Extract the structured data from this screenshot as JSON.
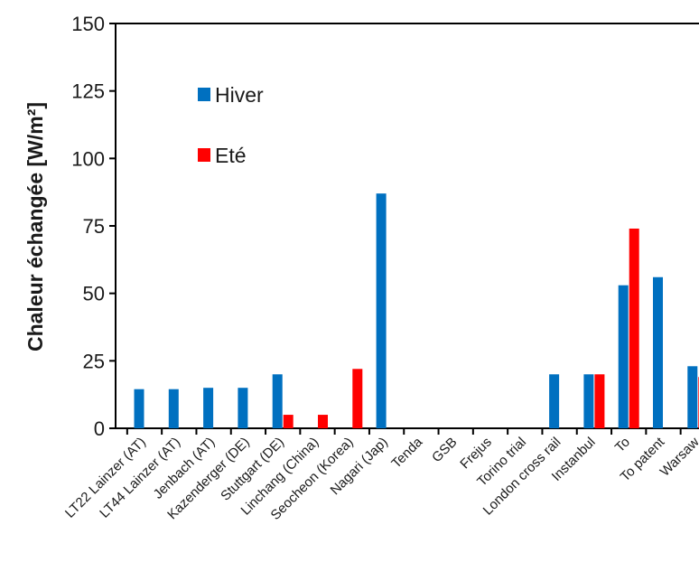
{
  "chart_data": {
    "type": "bar",
    "title": "",
    "xlabel": "",
    "ylabel": "Chaleur échangée [W/m²]",
    "ylim": [
      0,
      150
    ],
    "yticks": [
      0,
      25,
      50,
      75,
      100,
      125,
      150
    ],
    "grid": false,
    "legend_position": "top-left",
    "categories": [
      "LT22 Lainzer (AT)",
      "LT44 Lainzer (AT)",
      "Jenbach (AT)",
      "Kazenderger (DE)",
      "Stuttgart (DE)",
      "Linchang (China)",
      "Seocheon (Korea)",
      "Nagari (Jap)",
      "Tenda",
      "GSB",
      "Frejus",
      "Torino trial",
      "London cross rail",
      "Instanbul",
      "To",
      "To patent",
      "Warsaw"
    ],
    "series": [
      {
        "name": "Hiver",
        "color": "#0070c0",
        "values": [
          14.5,
          14.5,
          15,
          15,
          20,
          null,
          null,
          87,
          null,
          null,
          null,
          null,
          20,
          20,
          53,
          56,
          23
        ]
      },
      {
        "name": "Eté",
        "color": "#ff0000",
        "values": [
          null,
          null,
          null,
          null,
          5,
          5,
          22,
          null,
          null,
          null,
          null,
          null,
          null,
          20,
          74,
          null,
          19
        ]
      }
    ]
  }
}
